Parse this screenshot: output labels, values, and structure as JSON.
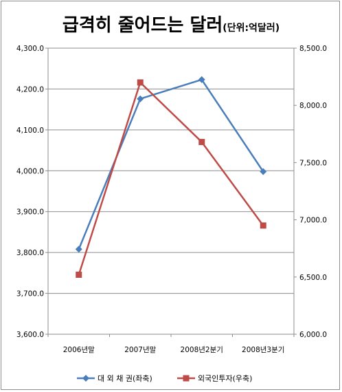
{
  "title": {
    "main": "급격히 줄어드는 달러",
    "sub": "(단위:억달러)"
  },
  "chart_data": {
    "type": "line",
    "categories": [
      "2006년말",
      "2007년말",
      "2008년2분기",
      "2008년3분기"
    ],
    "series": [
      {
        "name": "대 외 채 권(좌축)",
        "axis": "left",
        "color": "#4a7ebb",
        "marker": "diamond",
        "values": [
          3808,
          4176,
          4223,
          3998
        ]
      },
      {
        "name": "외국인투자(우축)",
        "axis": "right",
        "color": "#be4b48",
        "marker": "square",
        "values": [
          6520,
          8200,
          7680,
          6950
        ]
      }
    ],
    "y_left": {
      "min": 3600,
      "max": 4300,
      "step": 100,
      "ticks": [
        "3,600.0",
        "3,700.0",
        "3,800.0",
        "3,900.0",
        "4,000.0",
        "4,100.0",
        "4,200.0",
        "4,300.0"
      ]
    },
    "y_right": {
      "min": 6000,
      "max": 8500,
      "step": 500,
      "ticks": [
        "6,000.0",
        "6,500.0",
        "7,000.0",
        "7,500.0",
        "8,000.0",
        "8,500.0"
      ]
    },
    "grid": true,
    "legend_position": "bottom"
  }
}
